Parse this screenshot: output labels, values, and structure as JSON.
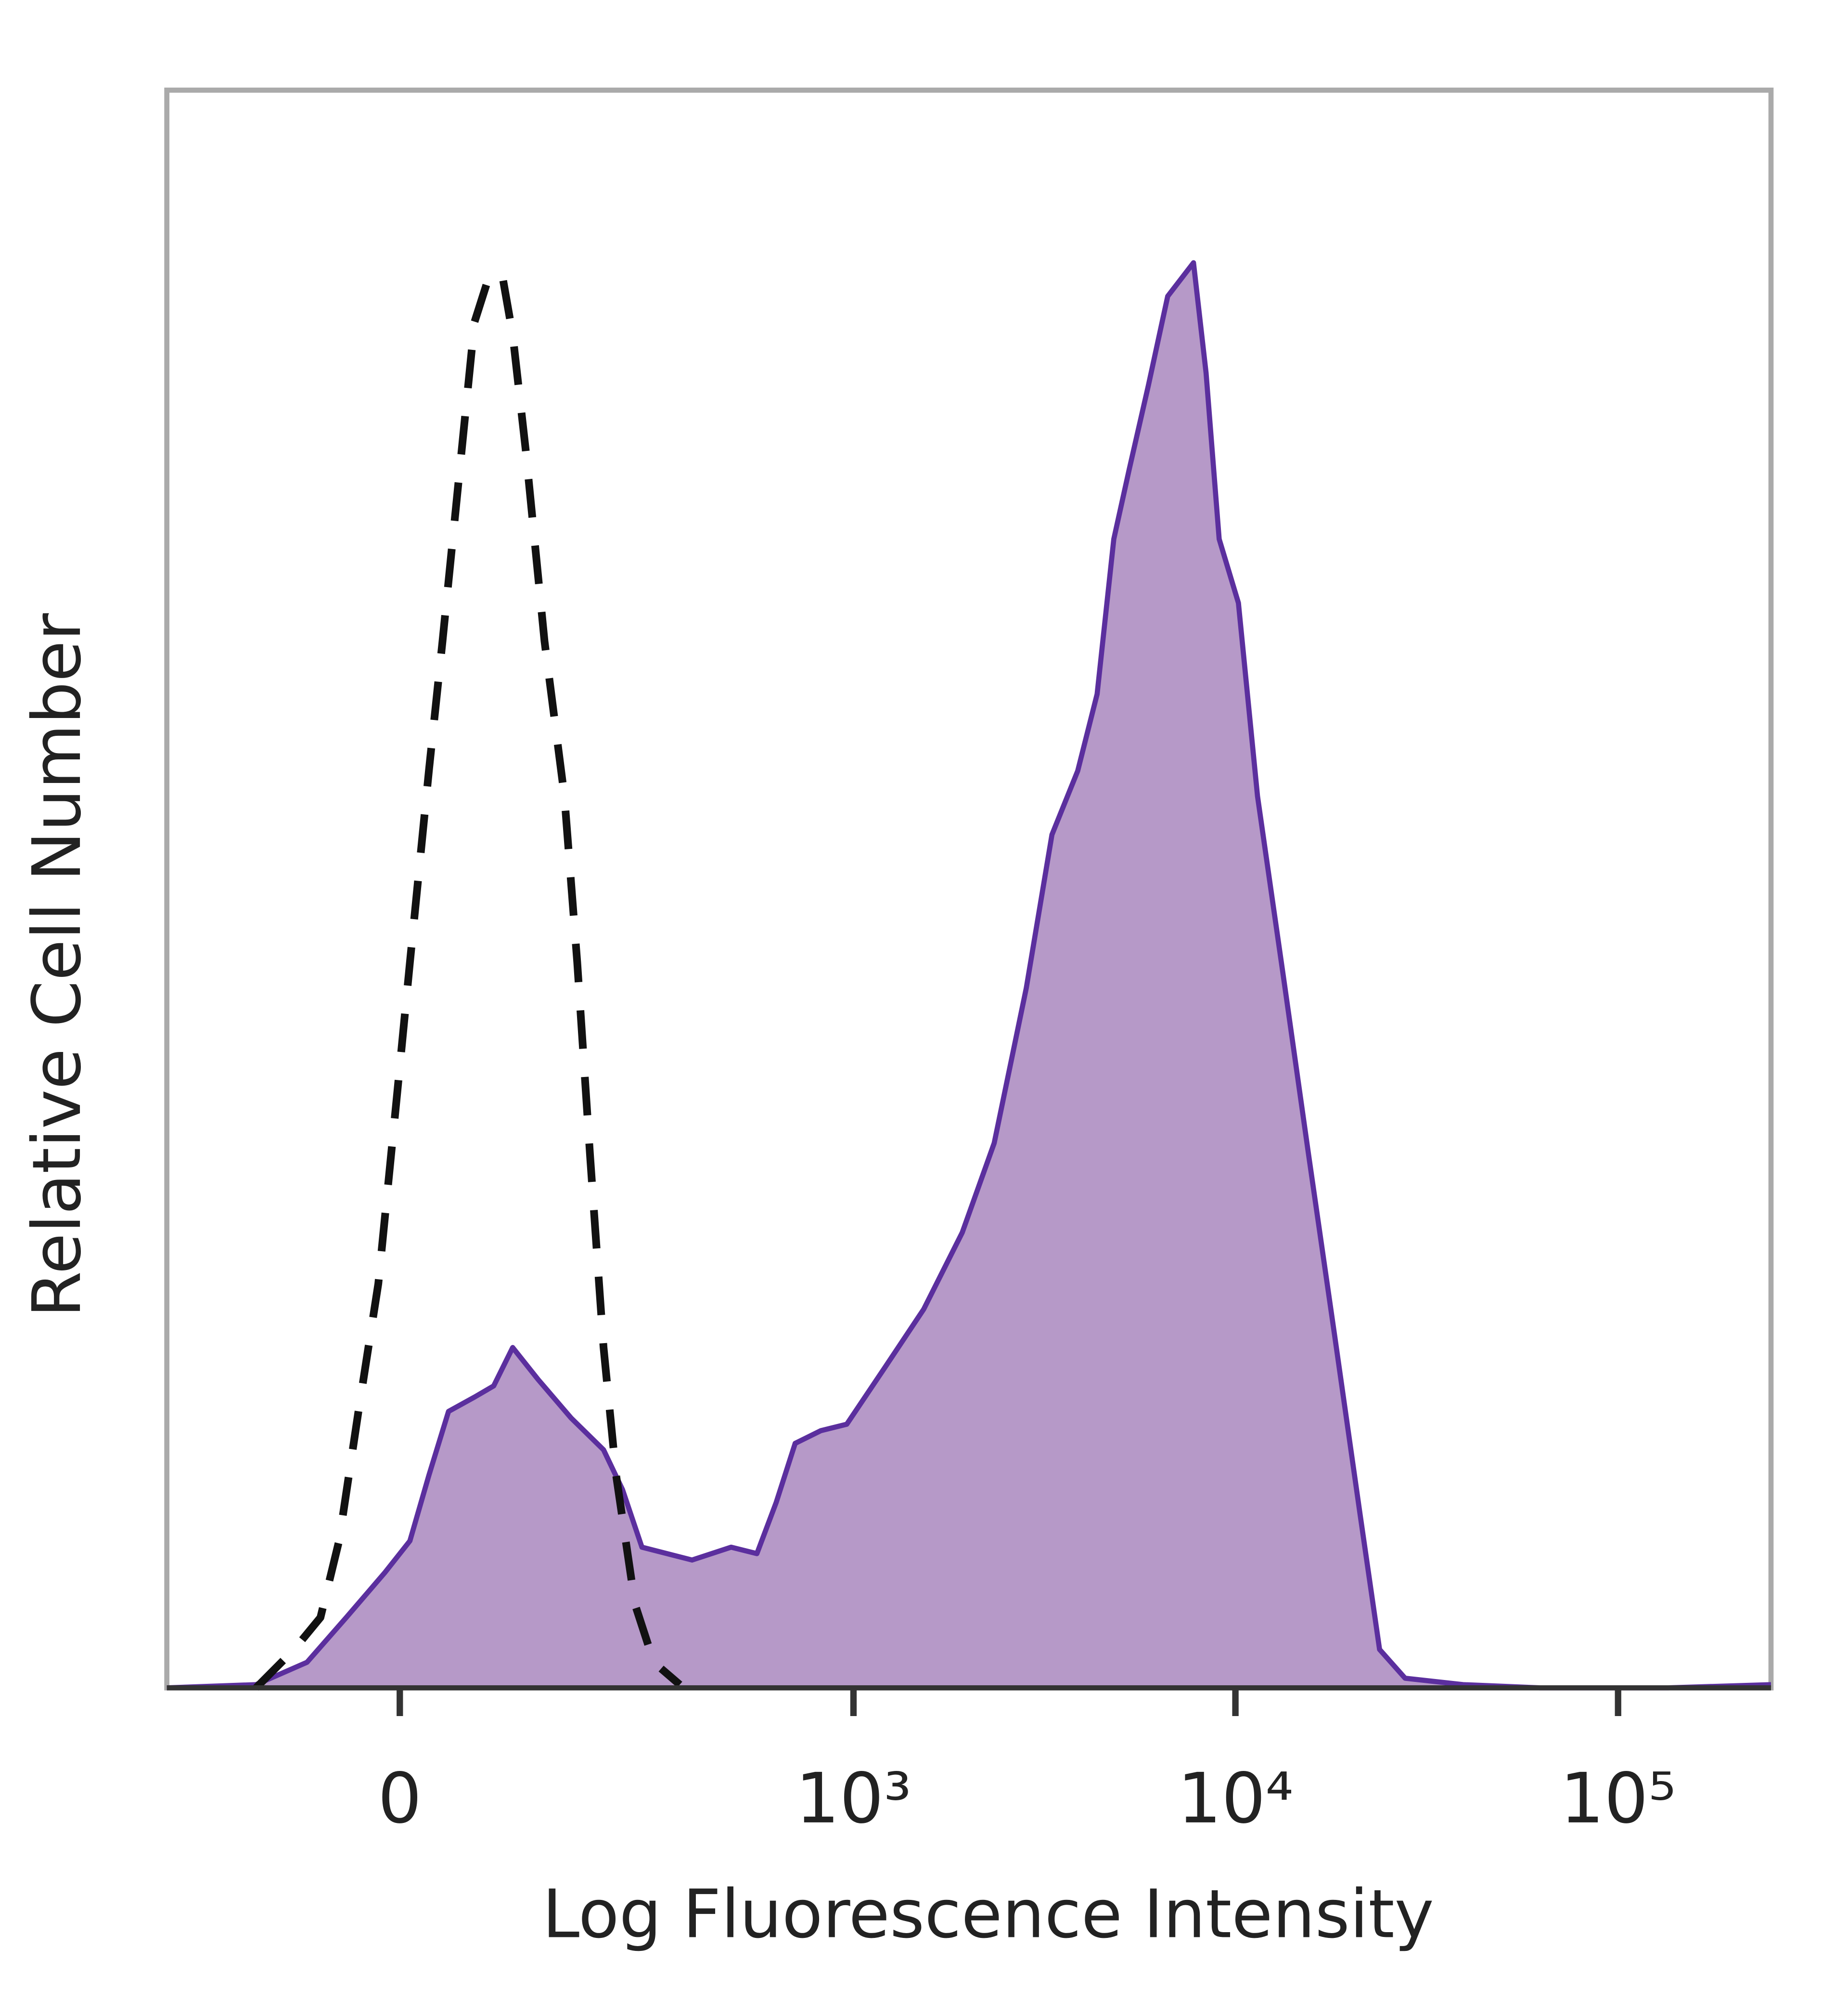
{
  "chart_data": {
    "type": "histogram-overlay",
    "xlabel": "Log Fluorescence Intensity",
    "ylabel": "Relative Cell Number",
    "xscale": "arcsinh",
    "linear_width": 131,
    "xlim": [
      -250,
      251000
    ],
    "ylim": [
      0,
      100
    ],
    "xticks": [
      0,
      {
        "value": 1000,
        "label": "10³"
      },
      {
        "value": 10000,
        "label": "10⁴"
      },
      {
        "value": 100000,
        "label": "10⁵"
      }
    ],
    "series": [
      {
        "color": "#5b2f9e",
        "fill": "#b699c8",
        "style": "solid",
        "x": [
          -250,
          -128,
          -77,
          -43,
          -12,
          8,
          23,
          39,
          61,
          78,
          96,
          122,
          160,
          204,
          233,
          266,
          369,
          472,
          554,
          624,
          701,
          820,
          960,
          1213,
          1530,
          1930,
          2340,
          2839,
          3314,
          3872,
          4349,
          4808,
          5279,
          5921,
          6655,
          7768,
          8384,
          9065,
          10179,
          11423,
          13336,
          15550,
          18157,
          21196,
          23803,
          27772,
          39352,
          62553,
          135200,
          251000
        ],
        "values": [
          0,
          0.2,
          1.6,
          4.4,
          7.2,
          9.2,
          13.3,
          17.3,
          18.2,
          18.9,
          21.3,
          19.3,
          16.9,
          14.9,
          12.4,
          8.8,
          8.0,
          8.8,
          8.4,
          11.6,
          15.3,
          16.1,
          16.5,
          20.1,
          23.7,
          28.5,
          34.1,
          43.8,
          53.4,
          57.4,
          62.2,
          71.9,
          76.3,
          81.5,
          87.1,
          89.2,
          82.3,
          71.9,
          67.9,
          55.8,
          44.6,
          33.3,
          22.1,
          10.8,
          2.4,
          0.6,
          0.2,
          0,
          0,
          0.2
        ]
      },
      {
        "color": "#111111",
        "style": "dashed",
        "x": [
          -128,
          -89,
          -65,
          -49,
          -33,
          -17,
          -2,
          8,
          23,
          34,
          50,
          61,
          74,
          86,
          96,
          109,
          129,
          152,
          168,
          185,
          204,
          223,
          254,
          288,
          341
        ],
        "values": [
          0,
          2.4,
          4.4,
          9.2,
          17.3,
          25.3,
          37.3,
          45.4,
          57.4,
          65.5,
          77.5,
          85.5,
          88.4,
          88.4,
          84.7,
          77.5,
          65.5,
          55.8,
          45.4,
          33.3,
          21.3,
          13.3,
          5.2,
          1.6,
          0.2
        ]
      }
    ]
  }
}
